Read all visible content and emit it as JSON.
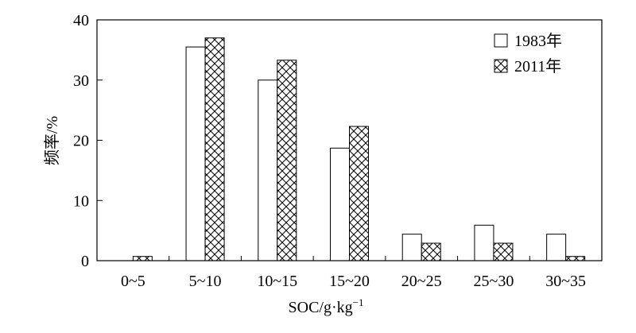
{
  "chart_data": {
    "type": "bar",
    "categories": [
      "0~5",
      "5~10",
      "10~15",
      "15~20",
      "20~25",
      "25~30",
      "30~35"
    ],
    "series": [
      {
        "name": "1983年",
        "pattern": "empty",
        "values": [
          0,
          35.5,
          30.0,
          18.7,
          4.4,
          5.9,
          4.4
        ]
      },
      {
        "name": "2011年",
        "pattern": "crosshatch",
        "values": [
          0.7,
          37.0,
          33.3,
          22.3,
          2.9,
          2.9,
          0.7
        ]
      }
    ],
    "xlabel": "SOC/g·kg",
    "xlabel_superscript": "−1",
    "ylabel": "频率/%",
    "ylim": [
      0,
      40
    ],
    "yticks": [
      0,
      10,
      20,
      30,
      40
    ],
    "grid": false,
    "legend_position": "top-right"
  }
}
